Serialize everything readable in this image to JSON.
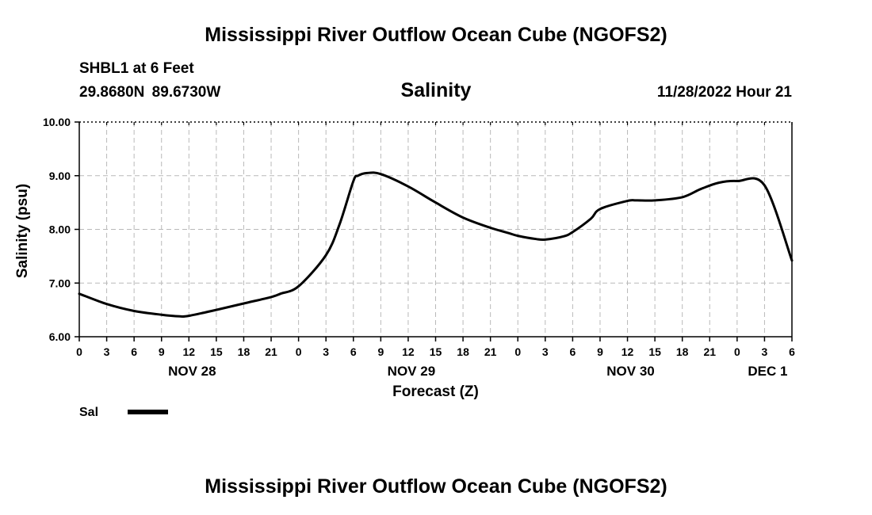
{
  "header": {
    "title": "Mississippi River Outflow Ocean Cube (NGOFS2)",
    "station": "SHBL1 at 6 Feet",
    "coordinates": "29.8680N  89.6730W",
    "timestamp": "11/28/2022 Hour 21"
  },
  "footer": {
    "title": "Mississippi River Outflow Ocean Cube (NGOFS2)"
  },
  "chart_data": {
    "type": "line",
    "title": "Salinity",
    "xlabel": "Forecast (Z)",
    "ylabel": "Salinity (psu)",
    "ylim": [
      6.0,
      10.0
    ],
    "xlim": [
      0,
      78
    ],
    "y_ticks": [
      "6.00",
      "7.00",
      "8.00",
      "9.00",
      "10.00"
    ],
    "x_tick_hours": [
      0,
      3,
      6,
      9,
      12,
      15,
      18,
      21,
      24,
      27,
      30,
      33,
      36,
      39,
      42,
      45,
      48,
      51,
      54,
      57,
      60,
      63,
      66,
      69,
      72,
      75,
      78
    ],
    "x_tick_labels": [
      "0",
      "3",
      "6",
      "9",
      "12",
      "15",
      "18",
      "21",
      "0",
      "3",
      "6",
      "9",
      "12",
      "15",
      "18",
      "21",
      "0",
      "3",
      "6",
      "9",
      "12",
      "15",
      "18",
      "21",
      "0",
      "3",
      "6"
    ],
    "day_labels": [
      {
        "label": "NOV 28",
        "hour": 12
      },
      {
        "label": "NOV 29",
        "hour": 36
      },
      {
        "label": "NOV 30",
        "hour": 60
      },
      {
        "label": "DEC 1",
        "hour": 75
      }
    ],
    "grid": true,
    "legend": "bottom-left",
    "series": [
      {
        "name": "Sal",
        "x": [
          0,
          3,
          6,
          9,
          11,
          12,
          15,
          18,
          21,
          22,
          24,
          27,
          28.5,
          30,
          30.5,
          31.5,
          33,
          36,
          39,
          42,
          45,
          47,
          48,
          50,
          51,
          53,
          54,
          56,
          57,
          60,
          61,
          63,
          66,
          68,
          70,
          72,
          75,
          78
        ],
        "y": [
          6.8,
          6.61,
          6.48,
          6.41,
          6.38,
          6.39,
          6.5,
          6.62,
          6.74,
          6.8,
          6.94,
          7.52,
          8.1,
          8.9,
          9.0,
          9.05,
          9.03,
          8.8,
          8.5,
          8.22,
          8.03,
          7.93,
          7.88,
          7.82,
          7.81,
          7.87,
          7.95,
          8.2,
          8.38,
          8.53,
          8.54,
          8.54,
          8.6,
          8.75,
          8.87,
          8.9,
          8.82,
          7.42
        ]
      }
    ]
  }
}
